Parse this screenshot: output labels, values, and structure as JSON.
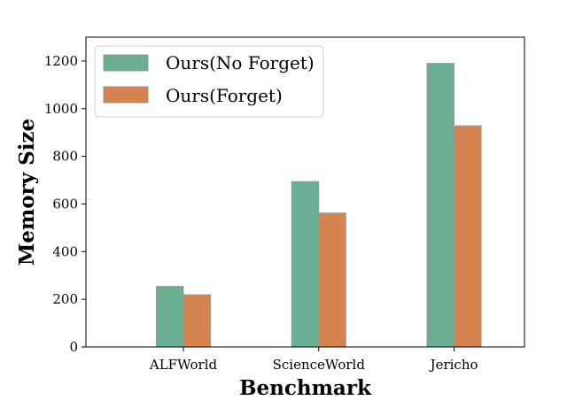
{
  "chart_data": {
    "type": "bar",
    "title": "",
    "xlabel": "Benchmark",
    "ylabel": "Memory Size",
    "categories": [
      "ALFWorld",
      "ScienceWorld",
      "Jericho"
    ],
    "series": [
      {
        "name": "Ours(No Forget)",
        "color": "#6aaf92",
        "values": [
          254,
          694,
          1190
        ]
      },
      {
        "name": "Ours(Forget)",
        "color": "#d6844f",
        "values": [
          219,
          562,
          928
        ]
      }
    ],
    "ylim": [
      0,
      1300
    ],
    "yticks": [
      0,
      200,
      400,
      600,
      800,
      1000,
      1200
    ],
    "grid": false,
    "legend_position": "top-left"
  }
}
